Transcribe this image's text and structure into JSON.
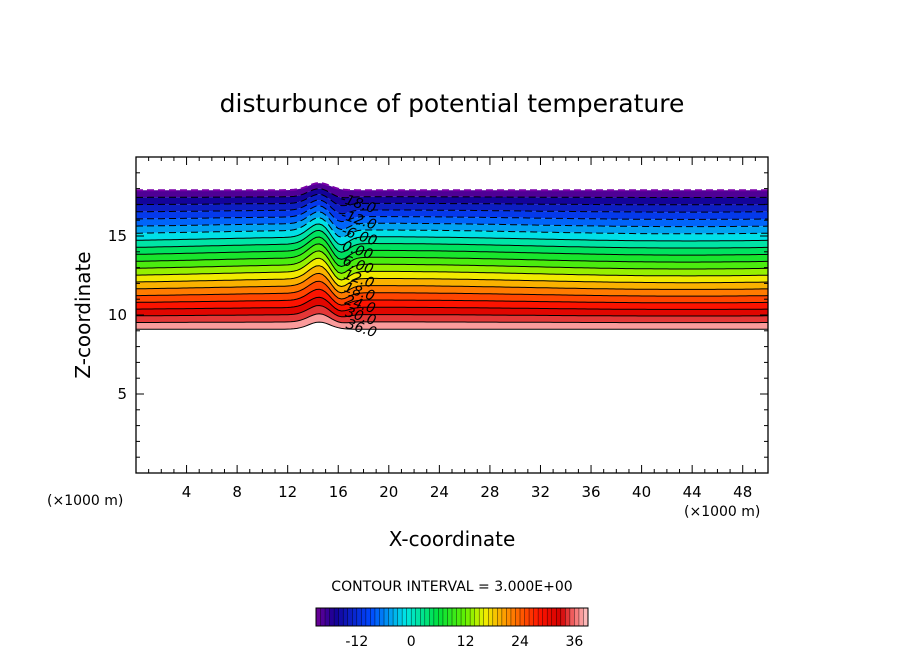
{
  "chart_data": {
    "type": "contour",
    "title": "disturbunce of potential temperature",
    "xlabel": "X-coordinate",
    "ylabel": "Z-coordinate",
    "x_unit_label": "(×1000 m)",
    "y_unit_label": "(×1000 m)",
    "xlim": [
      0,
      50
    ],
    "ylim": [
      0,
      20
    ],
    "x_ticks": [
      4,
      8,
      12,
      16,
      20,
      24,
      28,
      32,
      36,
      40,
      44,
      48
    ],
    "y_ticks": [
      5,
      10,
      15
    ],
    "contour_interval_text": "CONTOUR INTERVAL = 3.000E+00",
    "contour_interval": 3,
    "value_range": [
      -21,
      39
    ],
    "negative_contours": "dashed",
    "layer_top_z": 17.9,
    "layer_bottom_z": 9.1,
    "terrain_bump": {
      "center_x": 14.5,
      "amplitude_z": 0.9
    },
    "contour_labels": [
      "-18.0",
      "-12.0",
      "-6.00",
      "0.00",
      "6.00",
      "12.0",
      "18.0",
      "24.0",
      "30.0",
      "36.0"
    ],
    "colorbar": {
      "ticks": [
        "-12",
        "0",
        "12",
        "24",
        "36"
      ],
      "min": -21,
      "max": 39
    }
  }
}
